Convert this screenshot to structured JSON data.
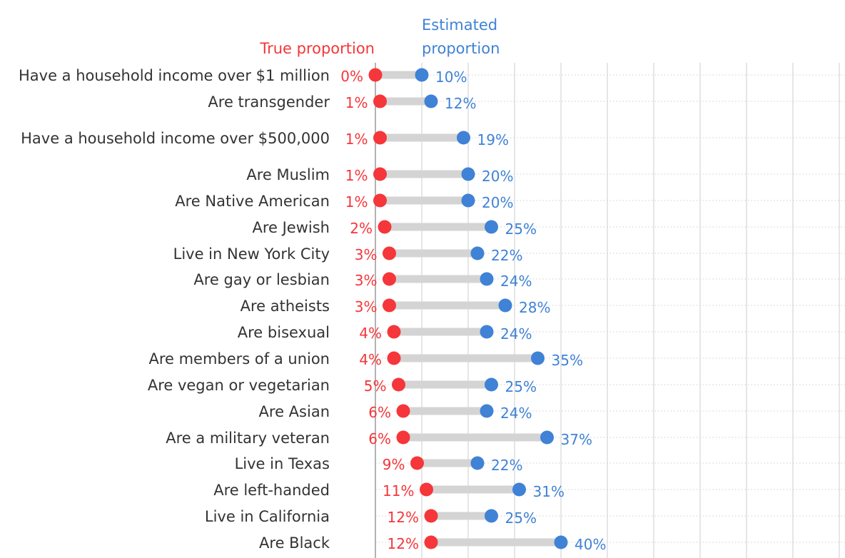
{
  "chart_data": {
    "type": "dumbbell",
    "legend": {
      "true_label": "True proportion",
      "estimated_label": "Estimated proportion"
    },
    "colors": {
      "true": "#f5363a",
      "estimated": "#3f82d6",
      "connector": "#d4d4d4",
      "grid": "#dddddd",
      "label": "#333333"
    },
    "xlim": [
      0,
      100
    ],
    "grid": true,
    "categories": [
      "Have a household income over $1 million",
      "Are transgender",
      "Have a household income over $500,000",
      "Are Muslim",
      "Are Native American",
      "Are Jewish",
      "Live in New York City",
      "Are gay or lesbian",
      "Are atheists",
      "Are bisexual",
      "Are members of a union",
      "Are vegan or vegetarian",
      "Are Asian",
      "Are a military veteran",
      "Live in Texas",
      "Are left-handed",
      "Live in California",
      "Are Black"
    ],
    "series": [
      {
        "name": "True proportion",
        "values": [
          0,
          1,
          1,
          1,
          1,
          2,
          3,
          3,
          3,
          4,
          4,
          5,
          6,
          6,
          9,
          11,
          12,
          12
        ],
        "labels": [
          "0%",
          "1%",
          "1%",
          "1%",
          "1%",
          "2%",
          "3%",
          "3%",
          "3%",
          "4%",
          "4%",
          "5%",
          "6%",
          "6%",
          "9%",
          "11%",
          "12%",
          "12%"
        ]
      },
      {
        "name": "Estimated proportion",
        "values": [
          10,
          12,
          19,
          20,
          20,
          25,
          22,
          24,
          28,
          24,
          35,
          25,
          24,
          37,
          22,
          31,
          25,
          40
        ],
        "labels": [
          "10%",
          "12%",
          "19%",
          "20%",
          "20%",
          "25%",
          "22%",
          "24%",
          "28%",
          "24%",
          "35%",
          "25%",
          "24%",
          "37%",
          "22%",
          "31%",
          "25%",
          "40%"
        ]
      }
    ]
  }
}
